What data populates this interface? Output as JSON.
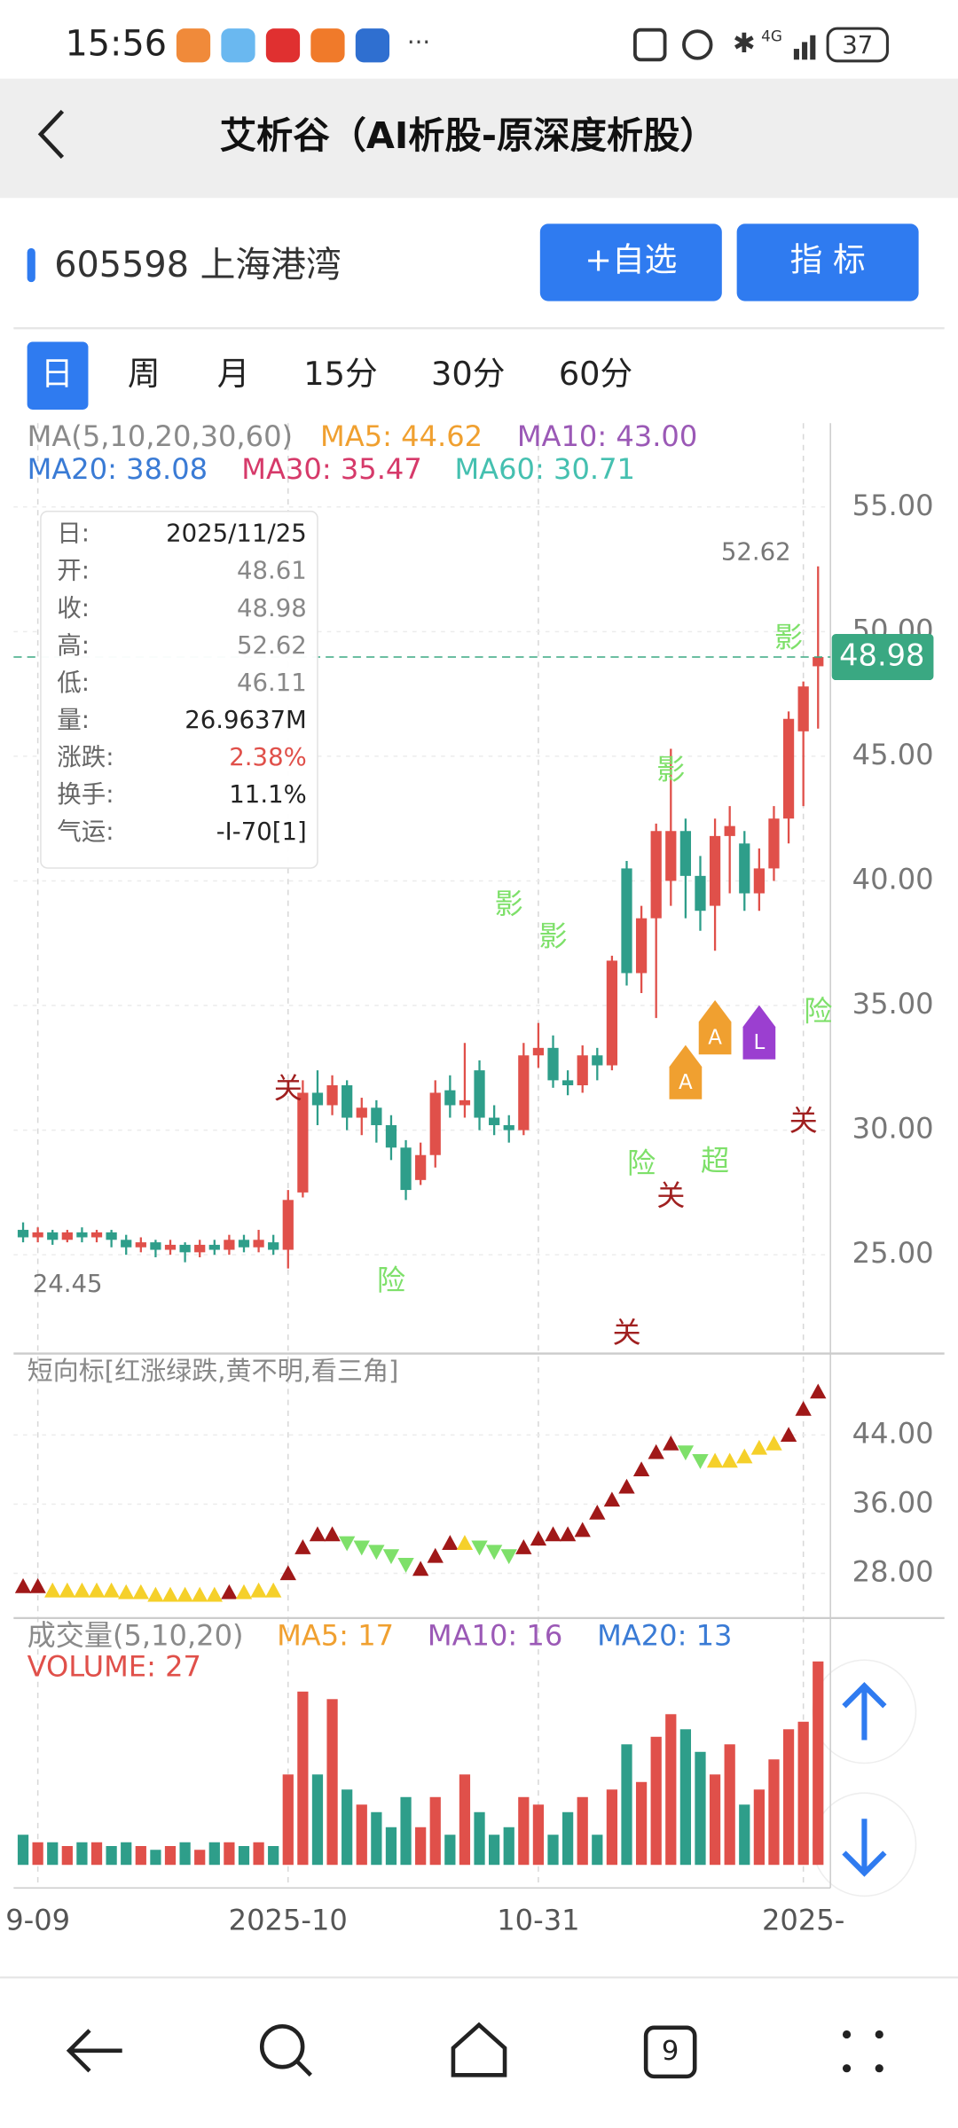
{
  "status_bar": {
    "time": "15:56",
    "network": "4G",
    "battery": "37"
  },
  "header": {
    "title": "艾析谷（AI析股-原深度析股）"
  },
  "stock": {
    "name": "605598 上海港湾",
    "buttons": [
      "+自选",
      "指 标"
    ]
  },
  "tabs": [
    "日",
    "周",
    "月",
    "15分",
    "30分",
    "60分"
  ],
  "tooltip": [
    [
      "日:",
      "2025/11/25"
    ],
    [
      "开:",
      "48.61"
    ],
    [
      "收:",
      "48.98"
    ],
    [
      "高:",
      "52.62"
    ],
    [
      "低:",
      "46.11"
    ],
    [
      "量:",
      "26.9637M"
    ],
    [
      "涨跌:",
      "2.38%"
    ],
    [
      "换手:",
      "11.1%"
    ],
    [
      "气运:",
      "-I-70[1]"
    ]
  ],
  "nav": {
    "tab_count": "9"
  },
  "chart_data": [
    {
      "type": "candlestick",
      "legend": [
        {
          "text": "MA(5,10,20,30,60)",
          "color": "#8a8a8a"
        },
        {
          "text": "MA5: 44.62",
          "color": "#f0a030"
        },
        {
          "text": "MA10: 43.00",
          "color": "#9b59b6"
        },
        {
          "text": "MA20: 38.08",
          "color": "#3a7bd5"
        },
        {
          "text": "MA30: 35.47",
          "color": "#d63a6a"
        },
        {
          "text": "MA60: 30.71",
          "color": "#45c0b0"
        }
      ],
      "up_color": "#e0504a",
      "down_color": "#2e9e8a",
      "open": [
        26.0,
        25.7,
        25.9,
        25.6,
        25.9,
        25.7,
        25.9,
        25.6,
        25.3,
        25.5,
        25.2,
        25.4,
        25.1,
        25.4,
        25.2,
        25.6,
        25.3,
        25.5,
        25.2,
        27.5,
        31.5,
        31.0,
        31.8,
        30.5,
        30.9,
        30.2,
        29.3,
        28.0,
        29.0,
        31.6,
        31.0,
        32.4,
        30.5,
        30.2,
        30.0,
        33.0,
        33.3,
        32.0,
        31.8,
        33.0,
        32.6,
        40.5,
        36.3,
        38.5,
        40.0,
        42.0,
        40.2,
        39.0,
        41.8,
        41.5,
        39.5,
        40.5,
        42.5,
        46.0,
        48.61
      ],
      "high": [
        26.3,
        26.1,
        26.0,
        26.0,
        26.1,
        26.0,
        26.0,
        25.8,
        25.7,
        25.6,
        25.6,
        25.5,
        25.6,
        25.6,
        25.8,
        25.8,
        26.0,
        25.8,
        27.6,
        32.0,
        32.4,
        32.2,
        32.0,
        31.3,
        31.2,
        30.6,
        29.6,
        29.5,
        32.0,
        32.2,
        33.5,
        32.8,
        31.0,
        30.6,
        33.5,
        34.3,
        33.8,
        32.4,
        33.4,
        33.3,
        37.0,
        40.8,
        39.0,
        42.3,
        45.3,
        42.5,
        41.0,
        42.5,
        43.0,
        42.0,
        41.3,
        43.0,
        46.8,
        48.0,
        52.62
      ],
      "low": [
        25.5,
        25.5,
        25.4,
        25.5,
        25.5,
        25.5,
        25.3,
        25.0,
        25.1,
        24.9,
        25.0,
        24.7,
        24.9,
        25.0,
        25.0,
        25.1,
        25.1,
        25.0,
        24.45,
        27.3,
        30.2,
        30.6,
        30.0,
        29.8,
        29.5,
        28.8,
        27.2,
        27.8,
        28.5,
        30.5,
        30.5,
        30.0,
        29.8,
        29.5,
        29.8,
        32.5,
        31.7,
        31.4,
        31.5,
        32.0,
        32.4,
        35.8,
        35.5,
        34.5,
        39.0,
        38.5,
        38.0,
        37.2,
        39.5,
        38.8,
        38.8,
        40.0,
        41.5,
        43.0,
        46.11
      ],
      "close": [
        25.7,
        25.9,
        25.6,
        25.9,
        25.7,
        25.9,
        25.6,
        25.3,
        25.5,
        25.2,
        25.4,
        25.1,
        25.4,
        25.2,
        25.6,
        25.3,
        25.6,
        25.2,
        27.2,
        31.5,
        31.0,
        31.8,
        30.5,
        30.9,
        30.2,
        29.3,
        27.6,
        29.0,
        31.5,
        31.0,
        31.2,
        30.5,
        30.2,
        30.0,
        33.0,
        33.3,
        32.0,
        31.8,
        33.0,
        32.6,
        36.8,
        36.3,
        38.5,
        42.0,
        42.0,
        40.2,
        38.8,
        41.8,
        42.2,
        39.5,
        40.5,
        42.5,
        46.5,
        47.8,
        48.98
      ],
      "high_label": 52.62,
      "low_label": 24.45,
      "signals": [
        {
          "text": "关",
          "index": 18,
          "value": 31.6,
          "color": "#a02020"
        },
        {
          "text": "险",
          "index": 25,
          "value": 23.9,
          "color": "#7ee06a"
        },
        {
          "text": "影",
          "index": 33,
          "value": 39.0,
          "color": "#7ee06a"
        },
        {
          "text": "影",
          "index": 36,
          "value": 37.7,
          "color": "#7ee06a"
        },
        {
          "text": "关",
          "index": 41,
          "value": 21.8,
          "color": "#a02020"
        },
        {
          "text": "险",
          "index": 42,
          "value": 28.6,
          "color": "#7ee06a"
        },
        {
          "text": "关",
          "index": 44,
          "value": 27.3,
          "color": "#a02020"
        },
        {
          "text": "影",
          "index": 44,
          "value": 44.4,
          "color": "#7ee06a"
        },
        {
          "text": "超",
          "index": 47,
          "value": 28.7,
          "color": "#7ee06a"
        },
        {
          "text": "影",
          "index": 52,
          "value": 49.7,
          "color": "#7ee06a"
        },
        {
          "text": "关",
          "index": 53,
          "value": 30.3,
          "color": "#a02020"
        },
        {
          "text": "险",
          "index": 54,
          "value": 34.7,
          "color": "#7ee06a"
        }
      ],
      "flags": [
        {
          "text": "A",
          "index": 45,
          "value": 32.0,
          "color": "#f0a030"
        },
        {
          "text": "A",
          "index": 47,
          "value": 33.8,
          "color": "#f0a030"
        },
        {
          "text": "L",
          "index": 50,
          "value": 33.6,
          "color": "#9b3fd0"
        }
      ],
      "ylim": [
        21.2,
        58.2
      ],
      "yticks": [
        {
          "value": 25,
          "label": "25.00"
        },
        {
          "value": 30,
          "label": "30.00"
        },
        {
          "value": 35,
          "label": "35.00"
        },
        {
          "value": 40,
          "label": "40.00"
        },
        {
          "value": 45,
          "label": "45.00"
        },
        {
          "value": 50,
          "label": "50.00"
        },
        {
          "value": 55,
          "label": "55.00"
        }
      ],
      "xticks": [
        {
          "value": 1,
          "label": "9-09"
        },
        {
          "value": 18,
          "label": "2025-10"
        },
        {
          "value": 35,
          "label": "10-31"
        },
        {
          "value": 53,
          "label": "2025-"
        }
      ]
    },
    {
      "type": "triangle",
      "title": "短向标[红涨绿跌,黄不明,看三角]",
      "values": [
        26.5,
        26.5,
        26,
        26,
        26,
        26,
        26,
        25.8,
        25.8,
        25.5,
        25.5,
        25.5,
        25.5,
        25.5,
        25.8,
        25.8,
        26,
        26,
        28,
        31,
        32.5,
        32.5,
        31.5,
        31,
        30.5,
        30,
        29,
        28.5,
        30,
        31.5,
        31.5,
        31,
        30.5,
        30,
        31,
        32,
        32.5,
        32.5,
        33,
        35,
        36.5,
        38,
        40,
        42,
        43,
        42,
        41,
        41,
        41,
        41.5,
        42.5,
        43,
        44,
        47,
        49
      ],
      "states": [
        "up",
        "up",
        "flat",
        "flat",
        "flat",
        "flat",
        "flat",
        "flat",
        "flat",
        "flat",
        "flat",
        "flat",
        "flat",
        "flat",
        "up",
        "flat",
        "flat",
        "flat",
        "up",
        "up",
        "up",
        "up",
        "down",
        "down",
        "down",
        "down",
        "down",
        "up",
        "up",
        "up",
        "flat",
        "down",
        "down",
        "down",
        "up",
        "up",
        "up",
        "up",
        "up",
        "up",
        "up",
        "up",
        "up",
        "up",
        "up",
        "down",
        "down",
        "flat",
        "flat",
        "flat",
        "flat",
        "flat",
        "up",
        "up",
        "up"
      ],
      "colors": {
        "up": "#a01818",
        "down": "#7ee06a",
        "flat": "#f5d02a"
      },
      "ylim": [
        23.3,
        53.1
      ],
      "yticks": [
        {
          "value": 28,
          "label": "28.00"
        },
        {
          "value": 36,
          "label": "36.00"
        },
        {
          "value": 44,
          "label": "44.00"
        }
      ]
    },
    {
      "type": "bar",
      "legend": [
        {
          "text": "成交量(5,10,20)",
          "color": "#8a8a8a"
        },
        {
          "text": "MA5: 17",
          "color": "#f0a030"
        },
        {
          "text": "MA10: 16",
          "color": "#9b59b6"
        },
        {
          "text": "MA20: 13",
          "color": "#3a7bd5"
        },
        {
          "text": "VOLUME: 27",
          "color": "#e0504a"
        }
      ],
      "values": [
        4,
        3,
        3,
        2.5,
        3,
        3,
        2.5,
        3,
        2.5,
        2,
        2.5,
        3,
        2,
        3,
        3,
        2.5,
        3,
        2.5,
        12,
        23,
        12,
        22,
        10,
        8,
        7,
        5,
        9,
        5,
        9,
        4,
        12,
        7,
        4,
        5,
        9,
        8,
        4,
        7,
        9,
        4,
        10,
        16,
        11,
        17,
        20,
        18,
        15,
        12,
        16,
        8,
        10,
        14,
        18,
        19,
        27
      ],
      "ylim": [
        0,
        32.4
      ]
    }
  ]
}
